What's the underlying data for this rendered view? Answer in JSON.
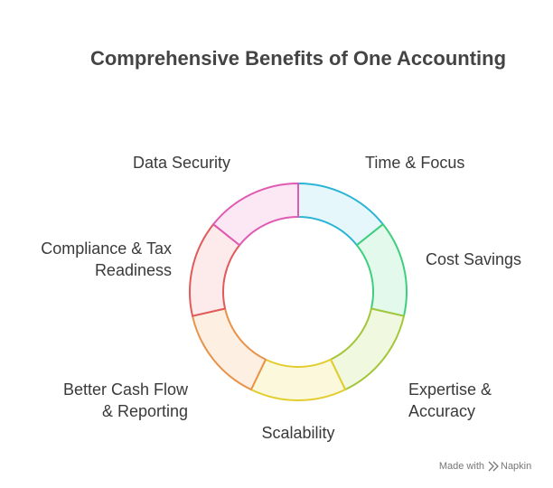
{
  "header": {
    "title": "Comprehensive Benefits of One Accounting"
  },
  "segments": [
    {
      "lines": [
        "Time & Focus"
      ]
    },
    {
      "lines": [
        "Cost Savings"
      ]
    },
    {
      "lines": [
        "Expertise &",
        "Accuracy"
      ]
    },
    {
      "lines": [
        "Scalability"
      ]
    },
    {
      "lines": [
        "Better Cash Flow",
        "& Reporting"
      ]
    },
    {
      "lines": [
        "Compliance & Tax",
        "Readiness"
      ]
    },
    {
      "lines": [
        "Data Security"
      ]
    }
  ],
  "footer": {
    "made_with": "Made with",
    "brand": "Napkin"
  }
}
